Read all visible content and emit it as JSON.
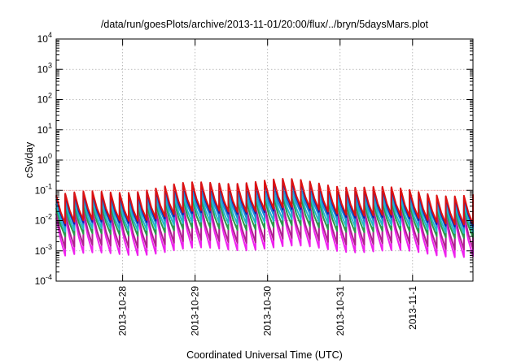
{
  "chart_data": {
    "type": "line",
    "title": "/data/run/goesPlots/archive/2013-11-01/20:00/flux/../bryn/5daysMars.plot",
    "xlabel": "Coordinated Universal Time (UTC)",
    "ylabel": "cSv/day",
    "yscale": "log",
    "ylim": [
      0.0001,
      10000
    ],
    "xlim": [
      "2013-10-27T02:00",
      "2013-11-01T20:00"
    ],
    "x_ticks": [
      "2013-10-28",
      "2013-10-29",
      "2013-10-30",
      "2013-10-31",
      "2013-11-1"
    ],
    "y_ticks": [
      {
        "base": "10",
        "exp": "-4"
      },
      {
        "base": "10",
        "exp": "-3"
      },
      {
        "base": "10",
        "exp": "-2"
      },
      {
        "base": "10",
        "exp": "-1"
      },
      {
        "base": "10",
        "exp": "0"
      },
      {
        "base": "10",
        "exp": "1"
      },
      {
        "base": "10",
        "exp": "2"
      },
      {
        "base": "10",
        "exp": "3"
      },
      {
        "base": "10",
        "exp": "4"
      }
    ],
    "grid": true,
    "legend": "none",
    "sawtooth_period_hours": 3,
    "series": [
      {
        "color": "#dd1111",
        "peak": 0.11,
        "trough": 0.013,
        "envelope": 0.55
      },
      {
        "color": "#1a1aaa",
        "peak": 0.1,
        "trough": 0.011,
        "envelope": 0.55
      },
      {
        "color": "#1f8fd8",
        "peak": 0.075,
        "trough": 0.009,
        "envelope": 0.45
      },
      {
        "color": "#22b8c8",
        "peak": 0.05,
        "trough": 0.006,
        "envelope": 0.4
      },
      {
        "color": "#2a9a4a",
        "peak": 0.035,
        "trough": 0.004,
        "envelope": 0.35
      },
      {
        "color": "#b02090",
        "peak": 0.022,
        "trough": 0.0016,
        "envelope": 0.3
      },
      {
        "color": "#ee22ee",
        "peak": 0.016,
        "trough": 0.0009,
        "envelope": 0.3
      }
    ],
    "threshold": {
      "value": 0.1,
      "color": "#ff6666"
    }
  }
}
